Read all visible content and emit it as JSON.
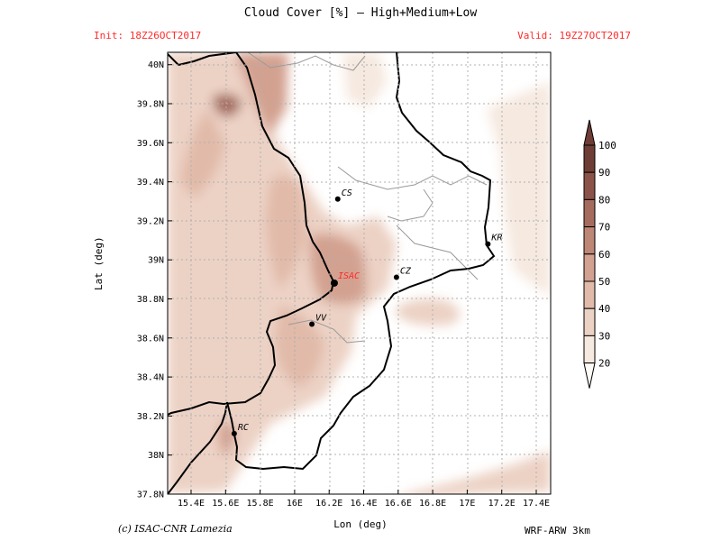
{
  "title": "Cloud Cover [%] — High+Medium+Low",
  "init": "Init: 18Z26OCT2017",
  "valid": "Valid: 19Z27OCT2017",
  "xlabel": "Lon (deg)",
  "ylabel": "Lat (deg)",
  "credit": "(c) ISAC-CNR Lamezia",
  "model": "WRF-ARW 3km",
  "lon_ticks": [
    "15.4E",
    "15.6E",
    "15.8E",
    "16E",
    "16.2E",
    "16.4E",
    "16.6E",
    "16.8E",
    "17E",
    "17.2E",
    "17.4E"
  ],
  "lat_ticks": [
    "37.8N",
    "38N",
    "38.2N",
    "38.4N",
    "38.6N",
    "38.8N",
    "39N",
    "39.2N",
    "39.4N",
    "39.6N",
    "39.8N",
    "40N"
  ],
  "colorbar": {
    "levels": [
      "20",
      "30",
      "40",
      "50",
      "60",
      "70",
      "80",
      "90",
      "100"
    ],
    "colors": [
      "#fffcf7",
      "#f6e9e0",
      "#ecd2c5",
      "#e1baa9",
      "#d3a190",
      "#bd8675",
      "#a56c5e",
      "#8b5249",
      "#6e3d36"
    ]
  },
  "cities": [
    {
      "id": "CS",
      "label": "CS",
      "lon": 16.25,
      "lat": 39.31
    },
    {
      "id": "KR",
      "label": "KR",
      "lon": 17.12,
      "lat": 39.08
    },
    {
      "id": "ISAC",
      "label": "ISAC",
      "lon": 16.23,
      "lat": 38.88
    },
    {
      "id": "CZ",
      "label": "CZ",
      "lon": 16.59,
      "lat": 38.91
    },
    {
      "id": "VV",
      "label": "VV",
      "lon": 16.1,
      "lat": 38.67
    },
    {
      "id": "RC",
      "label": "RC",
      "lon": 15.65,
      "lat": 38.11
    }
  ],
  "colors": {
    "title": "#000000",
    "timestamps": "#ff2a2a",
    "isac_label": "#ff2a2a"
  }
}
